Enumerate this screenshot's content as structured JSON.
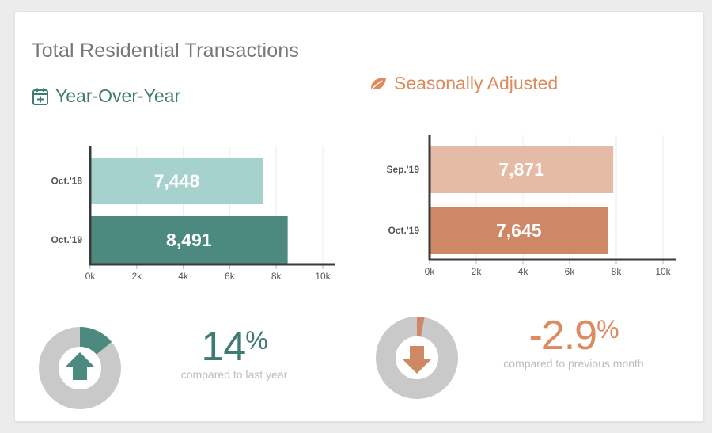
{
  "title": "Total Residential Transactions",
  "colors": {
    "yoy_light": "#a6d2ce",
    "yoy_dark": "#4c8a80",
    "yoy_head": "#3f7b72",
    "sa_light": "#e6bba5",
    "sa_dark": "#cf8866",
    "sa_head": "#dc8a5e",
    "donut_bg": "#c9c9c9",
    "axis": "#3a3a3a"
  },
  "yoy": {
    "heading": "Year-Over-Year",
    "icon": "calendar-plus-icon",
    "stat_value": "14",
    "stat_unit": "%",
    "stat_caption": "compared to last year",
    "direction": "up",
    "donut_fraction": 0.14
  },
  "sa": {
    "heading": "Seasonally Adjusted",
    "icon": "leaf-icon",
    "stat_value": "-2.9",
    "stat_unit": "%",
    "stat_caption": "compared to previous month",
    "direction": "down",
    "donut_fraction": 0.029
  },
  "chart_data": [
    {
      "type": "bar",
      "orientation": "horizontal",
      "categories": [
        "Oct.'18",
        "Oct.'19"
      ],
      "values": [
        7448,
        8491
      ],
      "value_labels": [
        "7,448",
        "8,491"
      ],
      "xlim": [
        0,
        10000
      ],
      "xticks": [
        0,
        2000,
        4000,
        6000,
        8000,
        10000
      ],
      "xtick_labels": [
        "0k",
        "2k",
        "4k",
        "6k",
        "8k",
        "10k"
      ],
      "grid": true
    },
    {
      "type": "bar",
      "orientation": "horizontal",
      "categories": [
        "Sep.'19",
        "Oct.'19"
      ],
      "values": [
        7871,
        7645
      ],
      "value_labels": [
        "7,871",
        "7,645"
      ],
      "xlim": [
        0,
        10000
      ],
      "xticks": [
        0,
        2000,
        4000,
        6000,
        8000,
        10000
      ],
      "xtick_labels": [
        "0k",
        "2k",
        "4k",
        "6k",
        "8k",
        "10k"
      ],
      "grid": true
    }
  ]
}
